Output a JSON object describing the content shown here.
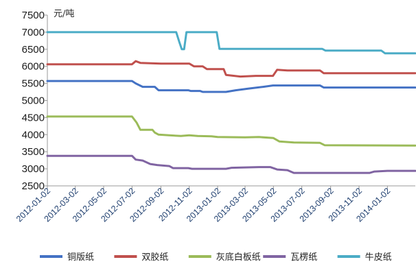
{
  "chart_data": {
    "type": "line",
    "unit_label": "元/吨",
    "ylim": [
      2500,
      7500
    ],
    "yticks": [
      2500,
      3000,
      3500,
      4000,
      4500,
      5000,
      5500,
      6000,
      6500,
      7000,
      7500
    ],
    "xrange": [
      "2012-01-02",
      "2014-03-03"
    ],
    "xticks": [
      "2012-01-02",
      "2012-03-02",
      "2012-05-02",
      "2012-07-02",
      "2012-09-02",
      "2012-11-02",
      "2013-01-02",
      "2013-03-02",
      "2013-05-02",
      "2013-07-02",
      "2013-09-02",
      "2013-11-02",
      "2014-01-02"
    ],
    "grid": false,
    "legend_position": "bottom",
    "series": [
      {
        "name": "铜版纸",
        "color": "#4472c4",
        "points": [
          [
            "2012-01-02",
            5570
          ],
          [
            "2012-07-02",
            5570
          ],
          [
            "2012-07-10",
            5500
          ],
          [
            "2012-07-25",
            5400
          ],
          [
            "2012-08-20",
            5400
          ],
          [
            "2012-08-28",
            5300
          ],
          [
            "2012-10-31",
            5300
          ],
          [
            "2012-11-05",
            5280
          ],
          [
            "2012-11-25",
            5280
          ],
          [
            "2012-12-01",
            5250
          ],
          [
            "2013-01-20",
            5250
          ],
          [
            "2013-02-10",
            5300
          ],
          [
            "2013-03-10",
            5350
          ],
          [
            "2013-04-10",
            5400
          ],
          [
            "2013-05-01",
            5440
          ],
          [
            "2013-08-10",
            5440
          ],
          [
            "2013-08-18",
            5380
          ],
          [
            "2014-03-03",
            5380
          ]
        ]
      },
      {
        "name": "双胶纸",
        "color": "#c0504d",
        "points": [
          [
            "2012-01-02",
            6060
          ],
          [
            "2012-07-02",
            6060
          ],
          [
            "2012-07-10",
            6150
          ],
          [
            "2012-07-20",
            6100
          ],
          [
            "2012-09-02",
            6080
          ],
          [
            "2012-11-02",
            6080
          ],
          [
            "2012-11-12",
            6000
          ],
          [
            "2012-12-01",
            6000
          ],
          [
            "2012-12-10",
            5920
          ],
          [
            "2013-01-15",
            5920
          ],
          [
            "2013-01-20",
            5750
          ],
          [
            "2013-02-20",
            5700
          ],
          [
            "2013-03-25",
            5720
          ],
          [
            "2013-05-01",
            5720
          ],
          [
            "2013-05-10",
            5900
          ],
          [
            "2013-06-01",
            5880
          ],
          [
            "2013-08-10",
            5880
          ],
          [
            "2013-08-18",
            5800
          ],
          [
            "2014-03-03",
            5800
          ]
        ]
      },
      {
        "name": "灰底白板纸",
        "color": "#9bbb59",
        "points": [
          [
            "2012-01-02",
            4530
          ],
          [
            "2012-07-02",
            4530
          ],
          [
            "2012-07-12",
            4350
          ],
          [
            "2012-07-20",
            4140
          ],
          [
            "2012-08-15",
            4140
          ],
          [
            "2012-08-20",
            4060
          ],
          [
            "2012-08-28",
            4000
          ],
          [
            "2012-09-20",
            3980
          ],
          [
            "2012-10-15",
            3960
          ],
          [
            "2012-11-02",
            3980
          ],
          [
            "2012-11-20",
            3960
          ],
          [
            "2012-12-20",
            3950
          ],
          [
            "2013-01-02",
            3930
          ],
          [
            "2013-03-02",
            3920
          ],
          [
            "2013-04-01",
            3930
          ],
          [
            "2013-05-02",
            3900
          ],
          [
            "2013-05-15",
            3800
          ],
          [
            "2013-06-15",
            3770
          ],
          [
            "2013-08-10",
            3760
          ],
          [
            "2013-08-20",
            3690
          ],
          [
            "2014-03-03",
            3680
          ]
        ]
      },
      {
        "name": "瓦楞纸",
        "color": "#8064a2",
        "points": [
          [
            "2012-01-02",
            3380
          ],
          [
            "2012-07-02",
            3380
          ],
          [
            "2012-07-10",
            3270
          ],
          [
            "2012-07-25",
            3240
          ],
          [
            "2012-08-10",
            3140
          ],
          [
            "2012-08-25",
            3110
          ],
          [
            "2012-09-20",
            3080
          ],
          [
            "2012-09-28",
            3020
          ],
          [
            "2012-10-31",
            3020
          ],
          [
            "2012-11-08",
            3000
          ],
          [
            "2013-01-20",
            3000
          ],
          [
            "2013-02-01",
            3030
          ],
          [
            "2013-04-01",
            3050
          ],
          [
            "2013-04-25",
            3050
          ],
          [
            "2013-05-10",
            2980
          ],
          [
            "2013-06-01",
            2960
          ],
          [
            "2013-06-15",
            2880
          ],
          [
            "2013-07-15",
            2880
          ],
          [
            "2013-11-25",
            2880
          ],
          [
            "2013-12-05",
            2920
          ],
          [
            "2014-01-02",
            2940
          ],
          [
            "2014-03-03",
            2940
          ]
        ]
      },
      {
        "name": "牛皮纸",
        "color": "#4bacc6",
        "points": [
          [
            "2012-01-02",
            7000
          ],
          [
            "2012-10-05",
            7000
          ],
          [
            "2012-10-12",
            6700
          ],
          [
            "2012-10-17",
            6500
          ],
          [
            "2012-10-22",
            6500
          ],
          [
            "2012-10-27",
            7000
          ],
          [
            "2012-12-31",
            7000
          ],
          [
            "2013-01-06",
            6510
          ],
          [
            "2013-08-15",
            6510
          ],
          [
            "2013-08-22",
            6460
          ],
          [
            "2013-12-20",
            6460
          ],
          [
            "2013-12-28",
            6380
          ],
          [
            "2014-03-03",
            6380
          ]
        ]
      }
    ]
  }
}
